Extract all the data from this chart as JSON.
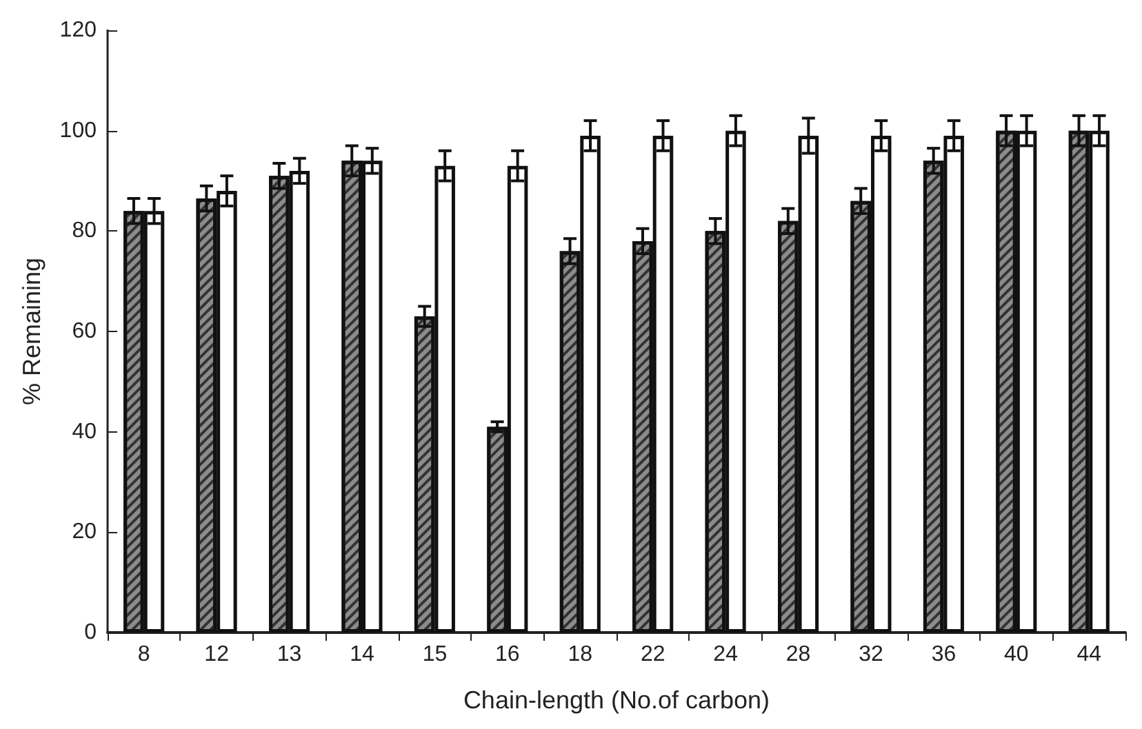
{
  "chart_data": {
    "type": "bar",
    "xlabel": "Chain-length (No.of carbon)",
    "ylabel": "% Remaining",
    "categories": [
      "8",
      "12",
      "13",
      "14",
      "15",
      "16",
      "18",
      "22",
      "24",
      "28",
      "32",
      "36",
      "40",
      "44"
    ],
    "series": [
      {
        "color": "#8c8c8c",
        "values": [
          84,
          86.5,
          91,
          94,
          63,
          41,
          76,
          78,
          80,
          82,
          86,
          94,
          100,
          100
        ],
        "errors": [
          2.5,
          2.5,
          2.5,
          3,
          2,
          1,
          2.5,
          2.5,
          2.5,
          2.5,
          2.5,
          2.5,
          3,
          3
        ]
      },
      {
        "color": "#ffffff",
        "values": [
          84,
          88,
          92,
          94,
          93,
          93,
          99,
          99,
          100,
          99,
          99,
          99,
          100,
          100
        ],
        "errors": [
          2.5,
          3,
          2.5,
          2.5,
          3,
          3,
          3,
          3,
          3,
          3.5,
          3,
          3,
          3,
          3
        ]
      }
    ],
    "ylim": [
      0,
      120
    ],
    "yticks": [
      0,
      20,
      40,
      60,
      80,
      100,
      120
    ],
    "grid": false
  }
}
